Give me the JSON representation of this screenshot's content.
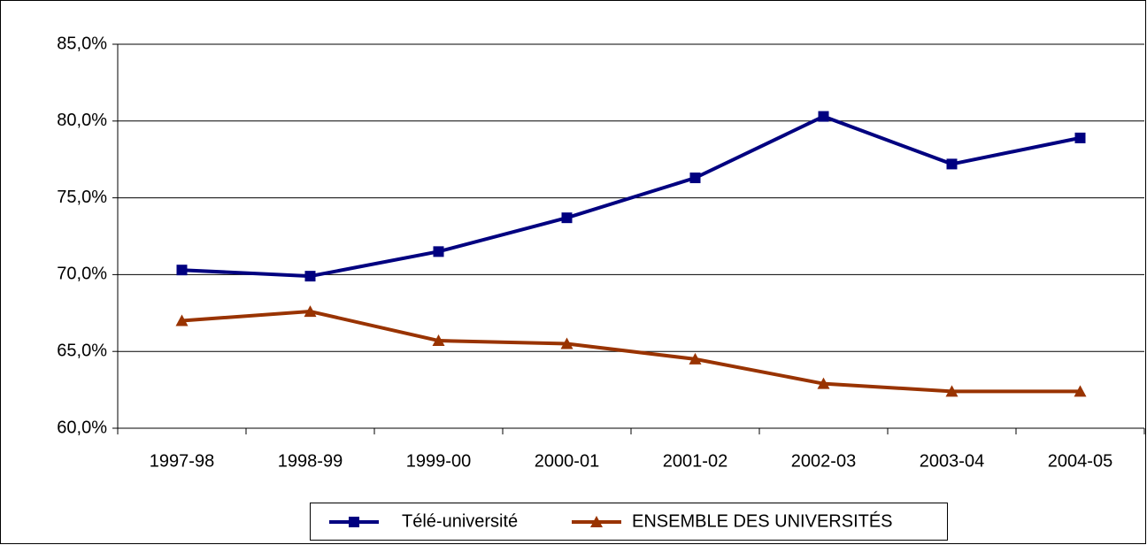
{
  "chart_data": {
    "type": "line",
    "categories": [
      "1997-98",
      "1998-99",
      "1999-00",
      "2000-01",
      "2001-02",
      "2002-03",
      "2003-04",
      "2004-05"
    ],
    "series": [
      {
        "name": "Télé-université",
        "color": "#000080",
        "marker": "square",
        "values": [
          70.3,
          69.9,
          71.5,
          73.7,
          76.3,
          80.3,
          77.2,
          78.9
        ]
      },
      {
        "name": "ENSEMBLE DES UNIVERSITÉS",
        "color": "#993300",
        "marker": "triangle",
        "values": [
          67.0,
          67.6,
          65.7,
          65.5,
          64.5,
          62.9,
          62.4,
          62.4
        ]
      }
    ],
    "ylim": [
      60,
      85
    ],
    "yticks": [
      {
        "value": 60,
        "label": "60,0%"
      },
      {
        "value": 65,
        "label": "65,0%"
      },
      {
        "value": 70,
        "label": "70,0%"
      },
      {
        "value": 75,
        "label": "75,0%"
      },
      {
        "value": 80,
        "label": "80,0%"
      },
      {
        "value": 85,
        "label": "85,0%"
      }
    ],
    "grid": true,
    "legend": "bottom"
  }
}
